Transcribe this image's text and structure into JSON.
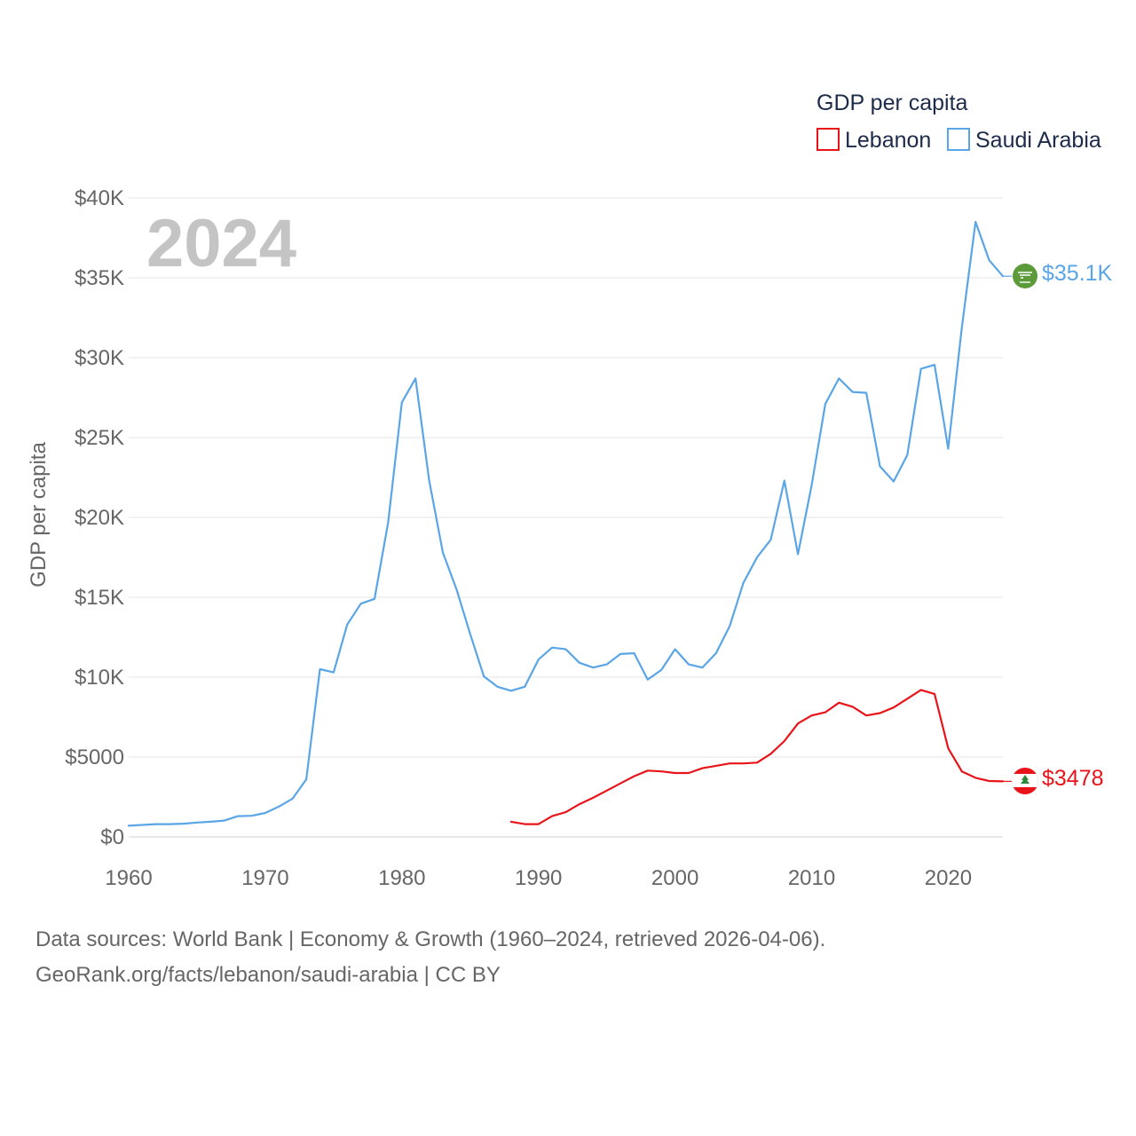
{
  "chart_data": {
    "type": "line",
    "year_label": "2024",
    "ylabel": "GDP per capita",
    "legend_title": "GDP per capita",
    "xlim": [
      1960,
      2024
    ],
    "ylim": [
      0,
      40000
    ],
    "x_ticks": [
      1960,
      1970,
      1980,
      1990,
      2000,
      2010,
      2020
    ],
    "x_tick_labels": [
      "1960",
      "1970",
      "1980",
      "1990",
      "2000",
      "2010",
      "2020"
    ],
    "y_ticks": [
      0,
      5000,
      10000,
      15000,
      20000,
      25000,
      30000,
      35000,
      40000
    ],
    "y_tick_labels": [
      "$0",
      "$5000",
      "$10K",
      "$15K",
      "$20K",
      "$25K",
      "$30K",
      "$35K",
      "$40K"
    ],
    "grid": true,
    "legend_position": "top-right",
    "series": [
      {
        "name": "Lebanon",
        "color": "#e8141a",
        "end_label": "$3478",
        "x": [
          1988,
          1989,
          1990,
          1991,
          1992,
          1993,
          1994,
          1995,
          1996,
          1997,
          1998,
          1999,
          2000,
          2001,
          2002,
          2003,
          2004,
          2005,
          2006,
          2007,
          2008,
          2009,
          2010,
          2011,
          2012,
          2013,
          2014,
          2015,
          2016,
          2017,
          2018,
          2019,
          2020,
          2021,
          2022,
          2023,
          2024
        ],
        "values": [
          950,
          800,
          800,
          1300,
          1550,
          2050,
          2450,
          2900,
          3350,
          3800,
          4150,
          4100,
          4000,
          4000,
          4300,
          4450,
          4600,
          4600,
          4650,
          5200,
          6000,
          7100,
          7600,
          7800,
          8400,
          8150,
          7600,
          7750,
          8100,
          8650,
          9200,
          8950,
          5550,
          4100,
          3700,
          3500,
          3478
        ]
      },
      {
        "name": "Saudi Arabia",
        "color": "#5aa5e6",
        "end_label": "$35.1K",
        "x": [
          1960,
          1961,
          1962,
          1963,
          1964,
          1965,
          1966,
          1967,
          1968,
          1969,
          1970,
          1971,
          1972,
          1973,
          1974,
          1975,
          1976,
          1977,
          1978,
          1979,
          1980,
          1981,
          1982,
          1983,
          1984,
          1985,
          1986,
          1987,
          1988,
          1989,
          1990,
          1991,
          1992,
          1993,
          1994,
          1995,
          1996,
          1997,
          1998,
          1999,
          2000,
          2001,
          2002,
          2003,
          2004,
          2005,
          2006,
          2007,
          2008,
          2009,
          2010,
          2011,
          2012,
          2013,
          2014,
          2015,
          2016,
          2017,
          2018,
          2019,
          2020,
          2021,
          2022,
          2023,
          2024
        ],
        "values": [
          700,
          750,
          800,
          800,
          830,
          900,
          950,
          1020,
          1300,
          1320,
          1500,
          1900,
          2400,
          3600,
          10500,
          10300,
          13300,
          14600,
          14900,
          19700,
          27200,
          28700,
          22300,
          17800,
          15500,
          12700,
          10050,
          9400,
          9150,
          9400,
          11100,
          11850,
          11750,
          10900,
          10600,
          10800,
          11450,
          11500,
          9850,
          10450,
          11750,
          10800,
          10600,
          11500,
          13200,
          15900,
          17500,
          18600,
          22300,
          17700,
          22000,
          27100,
          28700,
          27850,
          27800,
          23200,
          22250,
          23900,
          29300,
          29550,
          24300,
          31900,
          38500,
          36100,
          35100
        ]
      }
    ]
  },
  "footer": {
    "line1": "Data sources: World Bank | Economy & Growth (1960–2024, retrieved 2026-04-06).",
    "line2": "GeoRank.org/facts/lebanon/saudi-arabia | CC BY"
  }
}
